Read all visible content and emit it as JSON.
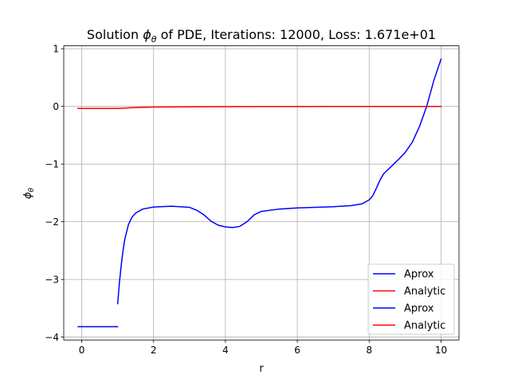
{
  "chart_data": {
    "type": "line",
    "title_prefix": "Solution ",
    "title_symbol": "ϕ",
    "title_subscript": "θ",
    "title_suffix": " of PDE, Iterations: 12000, Loss: 1.671e+01",
    "xlabel": "r",
    "ylabel_symbol": "ϕ",
    "ylabel_subscript": "θ",
    "xlim": [
      -0.5,
      10.5
    ],
    "ylim": [
      -4.05,
      1.05
    ],
    "xticks": [
      0,
      2,
      4,
      6,
      8,
      10
    ],
    "xtick_labels": [
      "0",
      "2",
      "4",
      "6",
      "8",
      "10"
    ],
    "yticks": [
      -4,
      -3,
      -2,
      -1,
      0,
      1
    ],
    "ytick_labels": [
      "−4",
      "−3",
      "−2",
      "−1",
      "0",
      "1"
    ],
    "grid": true,
    "legend_position": "lower-right",
    "series": [
      {
        "name": "Aprox",
        "color": "#0000ff",
        "points": [
          [
            1.0,
            -3.42
          ],
          [
            1.05,
            -3.05
          ],
          [
            1.1,
            -2.75
          ],
          [
            1.15,
            -2.5
          ],
          [
            1.2,
            -2.3
          ],
          [
            1.3,
            -2.05
          ],
          [
            1.4,
            -1.92
          ],
          [
            1.5,
            -1.85
          ],
          [
            1.7,
            -1.78
          ],
          [
            2.0,
            -1.745
          ],
          [
            2.5,
            -1.73
          ],
          [
            3.0,
            -1.75
          ],
          [
            3.2,
            -1.8
          ],
          [
            3.4,
            -1.88
          ],
          [
            3.6,
            -1.99
          ],
          [
            3.8,
            -2.06
          ],
          [
            4.0,
            -2.09
          ],
          [
            4.2,
            -2.1
          ],
          [
            4.4,
            -2.08
          ],
          [
            4.6,
            -2.0
          ],
          [
            4.8,
            -1.88
          ],
          [
            5.0,
            -1.82
          ],
          [
            5.5,
            -1.78
          ],
          [
            6.0,
            -1.76
          ],
          [
            6.5,
            -1.75
          ],
          [
            7.0,
            -1.74
          ],
          [
            7.5,
            -1.72
          ],
          [
            7.8,
            -1.69
          ],
          [
            8.0,
            -1.62
          ],
          [
            8.1,
            -1.55
          ],
          [
            8.2,
            -1.42
          ],
          [
            8.3,
            -1.28
          ],
          [
            8.4,
            -1.17
          ],
          [
            8.6,
            -1.05
          ],
          [
            8.8,
            -0.93
          ],
          [
            9.0,
            -0.8
          ],
          [
            9.2,
            -0.62
          ],
          [
            9.4,
            -0.35
          ],
          [
            9.6,
            0.0
          ],
          [
            9.8,
            0.45
          ],
          [
            10.0,
            0.82
          ]
        ]
      },
      {
        "name": "Analytic",
        "color": "#ff0000",
        "points": [
          [
            -0.1,
            -0.035
          ],
          [
            0.5,
            -0.035
          ],
          [
            1.0,
            -0.035
          ],
          [
            1.5,
            -0.02
          ],
          [
            2.0,
            -0.012
          ],
          [
            3.0,
            -0.007
          ],
          [
            4.0,
            -0.004
          ],
          [
            5.0,
            -0.003
          ],
          [
            6.0,
            -0.002
          ],
          [
            7.0,
            -0.001
          ],
          [
            8.0,
            -0.001
          ],
          [
            9.0,
            0.0
          ],
          [
            10.0,
            0.0
          ]
        ]
      },
      {
        "name": "Aprox",
        "color": "#0000ff",
        "points": [
          [
            -0.1,
            -3.82
          ],
          [
            1.0,
            -3.82
          ]
        ]
      },
      {
        "name": "Analytic",
        "color": "#ff0000",
        "points": [
          [
            -0.1,
            -0.035
          ],
          [
            1.0,
            -0.035
          ]
        ]
      }
    ]
  }
}
